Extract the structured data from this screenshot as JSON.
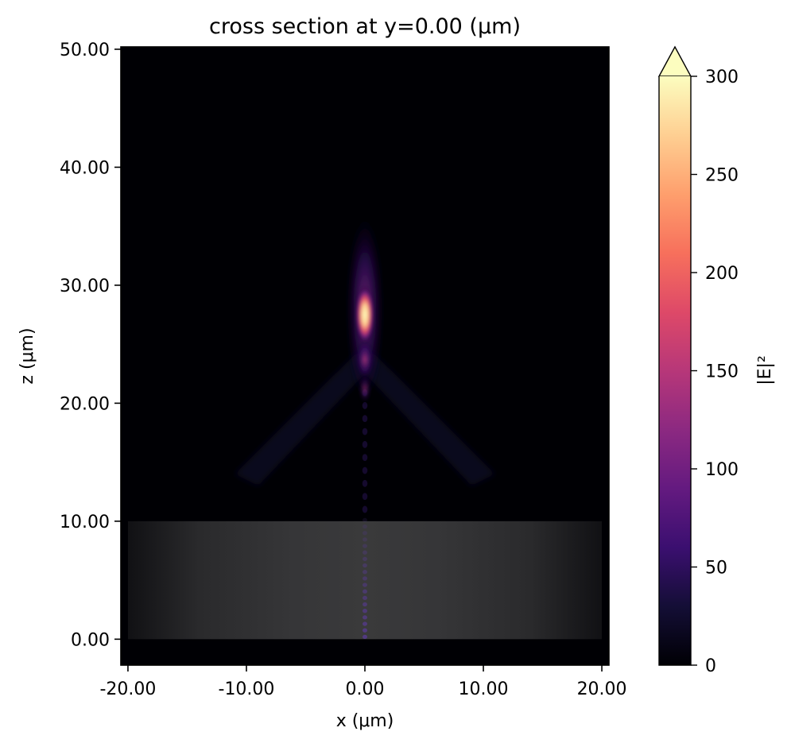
{
  "chart_data": {
    "type": "heatmap",
    "title": "cross section at y=0.00 (μm)",
    "xlabel": "x (μm)",
    "ylabel": "z (μm)",
    "xlim": [
      -20.6,
      20.6
    ],
    "ylim": [
      -2.2,
      50.2
    ],
    "xticks": [
      -20,
      -10,
      0,
      10,
      20
    ],
    "xtick_labels": [
      "-20.00",
      "-10.00",
      "0.00",
      "10.00",
      "20.00"
    ],
    "yticks": [
      0,
      10,
      20,
      30,
      40,
      50
    ],
    "ytick_labels": [
      "0.00",
      "10.00",
      "20.00",
      "30.00",
      "40.00",
      "50.00"
    ],
    "colormap": "magma",
    "colorbar": {
      "label": "|E|²",
      "min": 0,
      "max": 300,
      "extend": "max",
      "ticks": [
        0,
        50,
        100,
        150,
        200,
        250,
        300
      ],
      "tick_labels": [
        "0",
        "50",
        "100",
        "150",
        "200",
        "250",
        "300"
      ]
    },
    "structure": {
      "x_range": [
        -20,
        20
      ],
      "z_range": [
        0,
        10
      ],
      "color": "#3a3a3a"
    },
    "focal_spot": {
      "x": 0,
      "z": 27.5,
      "peak": 300
    },
    "grid": false
  }
}
